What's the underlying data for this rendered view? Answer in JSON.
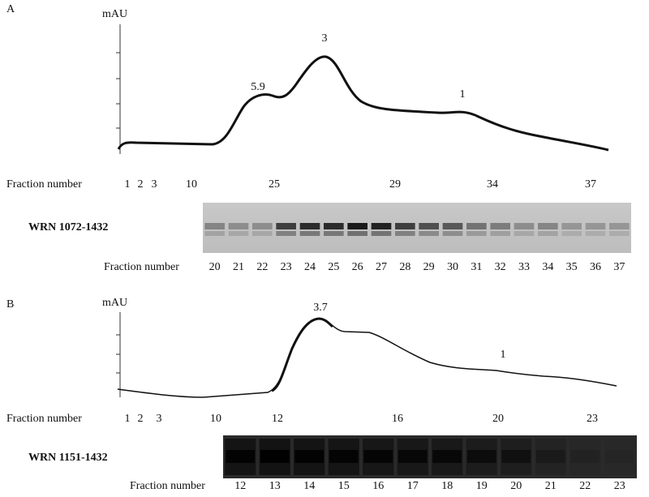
{
  "panels": [
    {
      "label": "A",
      "y_unit": "mAU",
      "peaks": [
        "5.9",
        "3",
        "1"
      ],
      "x_axis_title": "Fraction number",
      "x_ticks": [
        "1",
        "2",
        "3",
        "10",
        "25",
        "29",
        "34",
        "37"
      ],
      "gel": {
        "label": "WRN 1072-1432",
        "lane_title": "Fraction number",
        "lanes": [
          "20",
          "21",
          "22",
          "23",
          "24",
          "25",
          "26",
          "27",
          "28",
          "29",
          "30",
          "31",
          "32",
          "33",
          "34",
          "35",
          "36",
          "37"
        ]
      }
    },
    {
      "label": "B",
      "y_unit": "mAU",
      "peaks": [
        "3.7",
        "1"
      ],
      "x_axis_title": "Fraction number",
      "x_ticks": [
        "1",
        "2",
        "3",
        "10",
        "12",
        "16",
        "20",
        "23"
      ],
      "gel": {
        "label": "WRN 1151-1432",
        "lane_title": "Fraction number",
        "lanes": [
          "12",
          "13",
          "14",
          "15",
          "16",
          "17",
          "18",
          "19",
          "20",
          "21",
          "22",
          "23"
        ]
      }
    }
  ]
}
